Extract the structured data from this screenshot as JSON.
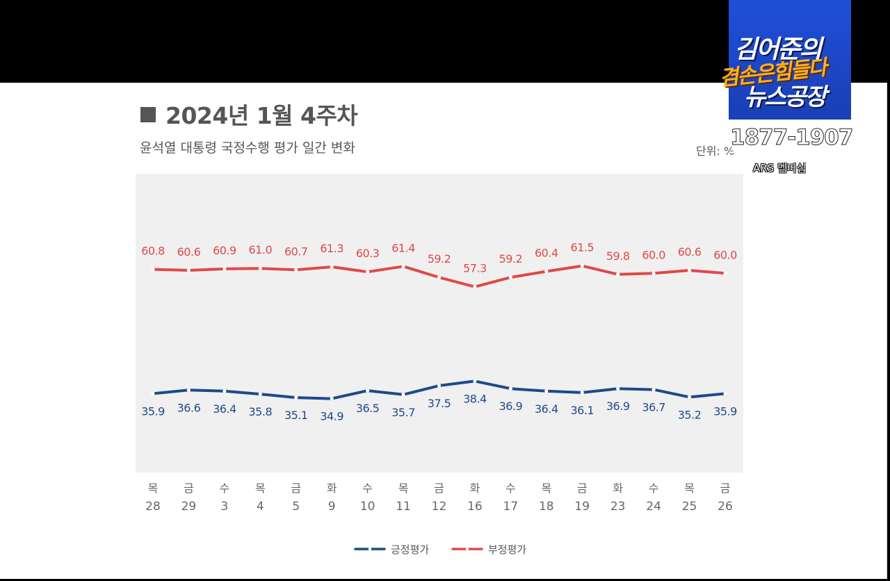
{
  "header": {
    "title": "2024년 1월 4주차",
    "subtitle": "윤석열 대통령 국정수행 평가 일간 변화",
    "unit": "단위: %"
  },
  "overlay": {
    "logo_line1": "김어준의",
    "logo_line2": "겸손은힘들다",
    "logo_line3": "뉴스공장",
    "phone": "1877-1907",
    "ars": "ARS 멤버십"
  },
  "colors": {
    "positive": "#1c4a8a",
    "negative": "#e04848",
    "plot_bg": "#f0f0f0"
  },
  "chart_data": {
    "type": "line",
    "title": "윤석열 대통령 국정수행 평가 일간 변화",
    "categories": [
      {
        "day": "목",
        "date": "28"
      },
      {
        "day": "금",
        "date": "29"
      },
      {
        "day": "수",
        "date": "3"
      },
      {
        "day": "목",
        "date": "4"
      },
      {
        "day": "금",
        "date": "5"
      },
      {
        "day": "화",
        "date": "9"
      },
      {
        "day": "수",
        "date": "10"
      },
      {
        "day": "목",
        "date": "11"
      },
      {
        "day": "금",
        "date": "12"
      },
      {
        "day": "화",
        "date": "16"
      },
      {
        "day": "수",
        "date": "17"
      },
      {
        "day": "목",
        "date": "18"
      },
      {
        "day": "금",
        "date": "19"
      },
      {
        "day": "화",
        "date": "23"
      },
      {
        "day": "수",
        "date": "24"
      },
      {
        "day": "목",
        "date": "25"
      },
      {
        "day": "금",
        "date": "26"
      }
    ],
    "series": [
      {
        "name": "긍정평가",
        "key": "positive",
        "values": [
          35.9,
          36.6,
          36.4,
          35.8,
          35.1,
          34.9,
          36.5,
          35.7,
          37.5,
          38.4,
          36.9,
          36.4,
          36.1,
          36.9,
          36.7,
          35.2,
          35.9
        ]
      },
      {
        "name": "부정평가",
        "key": "negative",
        "values": [
          60.8,
          60.6,
          60.9,
          61.0,
          60.7,
          61.3,
          60.3,
          61.4,
          59.2,
          57.3,
          59.2,
          60.4,
          61.5,
          59.8,
          60.0,
          60.6,
          60.0
        ]
      }
    ],
    "ylabel": "%",
    "xlabel": "",
    "legend": "bottom-center",
    "grid": false
  }
}
